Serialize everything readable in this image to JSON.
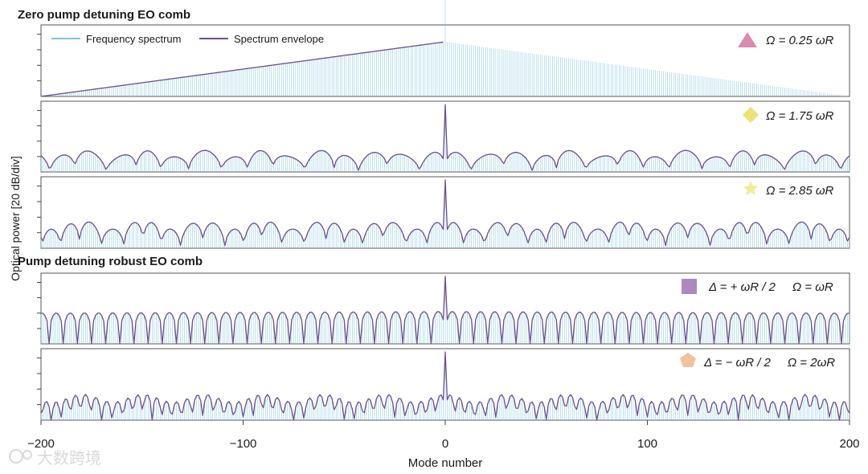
{
  "chart_data": {
    "type": "line",
    "ylabel": "Optical power [20 dB/div]",
    "xlabel": "Mode number",
    "xlim": [
      -200,
      200
    ],
    "xticks": [
      -200,
      -100,
      0,
      100,
      200
    ],
    "xtick_labels": [
      "−200",
      "−100",
      "0",
      "100",
      "200"
    ],
    "legend": {
      "placement": "top-left",
      "entries": [
        {
          "label": "Frequency spectrum",
          "color": "#7cc3dc"
        },
        {
          "label": "Spectrum envelope",
          "color": "#6b4f8c"
        }
      ]
    },
    "sections": [
      {
        "title": "Zero pump detuning EO comb"
      },
      {
        "title": "Pump detuning robust EO comb"
      }
    ],
    "panels": [
      {
        "label": "Ω = 0.25 ωR",
        "marker": "triangle",
        "marker_color": "#d98bb0",
        "profile": "triangular",
        "peak_center": 100,
        "peak_edge_at_0": 80,
        "edge": 0
      },
      {
        "label": "Ω = 1.75 ωR",
        "marker": "diamond",
        "marker_color": "#ece27a",
        "profile": "oscillating",
        "period": 14,
        "level": 32,
        "dip_depth": 25,
        "center": 100
      },
      {
        "label": "Ω = 2.85 ωR",
        "marker": "star",
        "marker_color": "#f0ec9a",
        "profile": "oscillating",
        "period": 10,
        "level": 40,
        "dip_depth": 30,
        "center": 100
      },
      {
        "label": "Δ = + ωR / 2     Ω = ωR",
        "marker": "square",
        "marker_color": "#a98bc0",
        "profile": "periodic",
        "period": 7,
        "level": 48,
        "dip_depth": 48,
        "center": 100
      },
      {
        "label": "Δ = − ωR / 2     Ω = 2ωR",
        "marker": "pentagon",
        "marker_color": "#f2c1a0",
        "profile": "oscillating",
        "period": 5,
        "level": 38,
        "dip_depth": 38,
        "center": 100
      }
    ]
  },
  "watermark": "大数跨境"
}
